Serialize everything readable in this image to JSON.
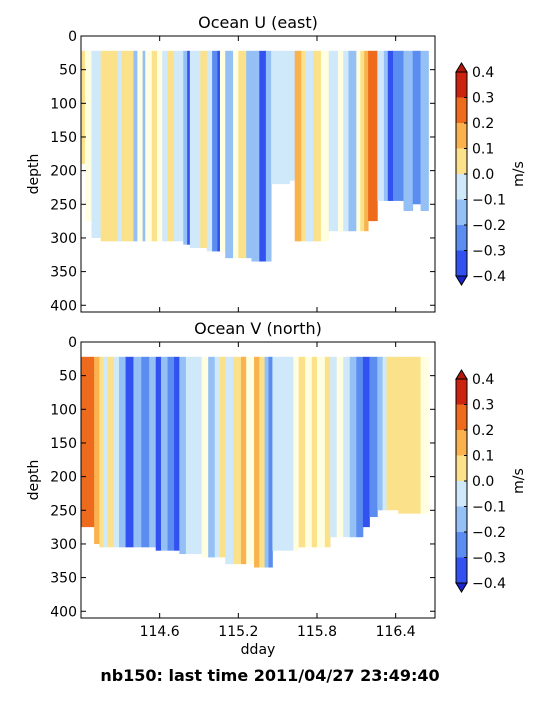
{
  "figure": {
    "suptitle": "nb150: last time 2011/04/27 23:49:40"
  },
  "chart_data": [
    {
      "type": "heatmap",
      "title": "Ocean U (east)",
      "xlabel": "",
      "ylabel": "depth",
      "x_ticks": [
        "114.6",
        "115.2",
        "115.8",
        "116.4"
      ],
      "x_tick_values": [
        114.6,
        115.2,
        115.8,
        116.4
      ],
      "xlim": [
        114.0,
        116.7
      ],
      "y_ticks": [
        "0",
        "50",
        "100",
        "150",
        "200",
        "250",
        "300",
        "350",
        "400"
      ],
      "y_tick_values": [
        0,
        50,
        100,
        150,
        200,
        250,
        300,
        350,
        400
      ],
      "ylim": [
        410,
        0
      ],
      "colorbar": {
        "label": "m/s",
        "ticks": [
          "0.4",
          "0.3",
          "0.2",
          "0.1",
          "0.0",
          "−0.1",
          "−0.2",
          "−0.3",
          "−0.4"
        ],
        "levels": [
          -0.4,
          -0.3,
          -0.2,
          -0.1,
          0.0,
          0.1,
          0.2,
          0.3,
          0.4
        ],
        "level_colors": [
          "#3152f0",
          "#5b8df0",
          "#94c0f5",
          "#cfe8fa",
          "#fffee0",
          "#fbe28a",
          "#f9b24e",
          "#ee6a1c",
          "#cc2210"
        ],
        "extend": "both"
      },
      "profiles": [
        {
          "x0": 114.0,
          "x1": 114.03,
          "v": 0.15,
          "top": 22,
          "bottom": 190
        },
        {
          "x0": 114.03,
          "x1": 114.08,
          "v": 0.05,
          "top": 22,
          "bottom": 275
        },
        {
          "x0": 114.08,
          "x1": 114.15,
          "v": -0.05,
          "top": 22,
          "bottom": 300
        },
        {
          "x0": 114.15,
          "x1": 114.28,
          "v": 0.15,
          "top": 22,
          "bottom": 305
        },
        {
          "x0": 114.28,
          "x1": 114.31,
          "v": -0.05,
          "top": 22,
          "bottom": 305
        },
        {
          "x0": 114.31,
          "x1": 114.4,
          "v": 0.12,
          "top": 22,
          "bottom": 305
        },
        {
          "x0": 114.4,
          "x1": 114.43,
          "v": -0.12,
          "top": 22,
          "bottom": 305
        },
        {
          "x0": 114.43,
          "x1": 114.47,
          "v": 0.05,
          "top": 22,
          "bottom": 305
        },
        {
          "x0": 114.47,
          "x1": 114.49,
          "v": -0.12,
          "top": 22,
          "bottom": 305
        },
        {
          "x0": 114.49,
          "x1": 114.54,
          "v": 0.05,
          "top": 22,
          "bottom": 305
        },
        {
          "x0": 114.54,
          "x1": 114.58,
          "v": 0.15,
          "top": 22,
          "bottom": 305
        },
        {
          "x0": 114.58,
          "x1": 114.62,
          "v": 0.05,
          "top": 22,
          "bottom": 305
        },
        {
          "x0": 114.62,
          "x1": 114.66,
          "v": -0.05,
          "top": 22,
          "bottom": 305
        },
        {
          "x0": 114.66,
          "x1": 114.71,
          "v": 0.15,
          "top": 22,
          "bottom": 305
        },
        {
          "x0": 114.71,
          "x1": 114.78,
          "v": -0.05,
          "top": 22,
          "bottom": 305
        },
        {
          "x0": 114.78,
          "x1": 114.81,
          "v": -0.15,
          "top": 22,
          "bottom": 310
        },
        {
          "x0": 114.81,
          "x1": 114.83,
          "v": -0.35,
          "top": 22,
          "bottom": 310
        },
        {
          "x0": 114.83,
          "x1": 114.91,
          "v": -0.05,
          "top": 22,
          "bottom": 315
        },
        {
          "x0": 114.91,
          "x1": 114.96,
          "v": 0.12,
          "top": 22,
          "bottom": 315
        },
        {
          "x0": 114.96,
          "x1": 115.0,
          "v": -0.05,
          "top": 22,
          "bottom": 320
        },
        {
          "x0": 115.0,
          "x1": 115.04,
          "v": -0.25,
          "top": 22,
          "bottom": 320
        },
        {
          "x0": 115.04,
          "x1": 115.06,
          "v": -0.38,
          "top": 22,
          "bottom": 320
        },
        {
          "x0": 115.06,
          "x1": 115.1,
          "v": 0.05,
          "top": 22,
          "bottom": 320
        },
        {
          "x0": 115.1,
          "x1": 115.16,
          "v": -0.15,
          "top": 22,
          "bottom": 330
        },
        {
          "x0": 115.16,
          "x1": 115.2,
          "v": 0.05,
          "top": 22,
          "bottom": 330
        },
        {
          "x0": 115.2,
          "x1": 115.26,
          "v": 0.12,
          "top": 22,
          "bottom": 330
        },
        {
          "x0": 115.26,
          "x1": 115.3,
          "v": -0.12,
          "top": 22,
          "bottom": 330
        },
        {
          "x0": 115.3,
          "x1": 115.36,
          "v": -0.2,
          "top": 22,
          "bottom": 335
        },
        {
          "x0": 115.36,
          "x1": 115.41,
          "v": -0.32,
          "top": 22,
          "bottom": 335
        },
        {
          "x0": 115.41,
          "x1": 115.45,
          "v": -0.15,
          "top": 22,
          "bottom": 335
        },
        {
          "x0": 115.45,
          "x1": 115.48,
          "v": -0.05,
          "top": 22,
          "bottom": 220
        },
        {
          "x0": 115.48,
          "x1": 115.59,
          "v": -0.05,
          "top": 22,
          "bottom": 220
        },
        {
          "x0": 115.59,
          "x1": 115.63,
          "v": -0.08,
          "top": 22,
          "bottom": 215
        },
        {
          "x0": 115.63,
          "x1": 115.68,
          "v": 0.25,
          "top": 22,
          "bottom": 305
        },
        {
          "x0": 115.68,
          "x1": 115.71,
          "v": 0.12,
          "top": 22,
          "bottom": 305
        },
        {
          "x0": 115.71,
          "x1": 115.77,
          "v": -0.05,
          "top": 22,
          "bottom": 305
        },
        {
          "x0": 115.77,
          "x1": 115.83,
          "v": 0.12,
          "top": 22,
          "bottom": 305
        },
        {
          "x0": 115.83,
          "x1": 115.89,
          "v": 0.05,
          "top": 22,
          "bottom": 305
        },
        {
          "x0": 115.89,
          "x1": 115.96,
          "v": -0.05,
          "top": 22,
          "bottom": 290
        },
        {
          "x0": 115.96,
          "x1": 116.0,
          "v": 0.05,
          "top": 22,
          "bottom": 290
        },
        {
          "x0": 116.0,
          "x1": 116.04,
          "v": -0.05,
          "top": 22,
          "bottom": 290
        },
        {
          "x0": 116.04,
          "x1": 116.1,
          "v": -0.12,
          "top": 22,
          "bottom": 290
        },
        {
          "x0": 116.1,
          "x1": 116.13,
          "v": 0.05,
          "top": 22,
          "bottom": 290
        },
        {
          "x0": 116.13,
          "x1": 116.16,
          "v": 0.15,
          "top": 22,
          "bottom": 290
        },
        {
          "x0": 116.16,
          "x1": 116.19,
          "v": 0.25,
          "top": 22,
          "bottom": 290
        },
        {
          "x0": 116.19,
          "x1": 116.26,
          "v": 0.38,
          "top": 22,
          "bottom": 275
        },
        {
          "x0": 116.26,
          "x1": 116.31,
          "v": -0.05,
          "top": 22,
          "bottom": 245
        },
        {
          "x0": 116.31,
          "x1": 116.34,
          "v": -0.18,
          "top": 22,
          "bottom": 245
        },
        {
          "x0": 116.34,
          "x1": 116.38,
          "v": -0.35,
          "top": 22,
          "bottom": 245
        },
        {
          "x0": 116.38,
          "x1": 116.46,
          "v": -0.22,
          "top": 22,
          "bottom": 245
        },
        {
          "x0": 116.46,
          "x1": 116.53,
          "v": -0.12,
          "top": 22,
          "bottom": 260
        },
        {
          "x0": 116.53,
          "x1": 116.59,
          "v": -0.22,
          "top": 22,
          "bottom": 250
        },
        {
          "x0": 116.59,
          "x1": 116.65,
          "v": -0.12,
          "top": 22,
          "bottom": 260
        }
      ]
    },
    {
      "type": "heatmap",
      "title": "Ocean V (north)",
      "xlabel": "dday",
      "ylabel": "depth",
      "x_ticks": [
        "114.6",
        "115.2",
        "115.8",
        "116.4"
      ],
      "x_tick_values": [
        114.6,
        115.2,
        115.8,
        116.4
      ],
      "xlim": [
        114.0,
        116.7
      ],
      "y_ticks": [
        "0",
        "50",
        "100",
        "150",
        "200",
        "250",
        "300",
        "350",
        "400"
      ],
      "y_tick_values": [
        0,
        50,
        100,
        150,
        200,
        250,
        300,
        350,
        400
      ],
      "ylim": [
        410,
        0
      ],
      "colorbar": {
        "label": "m/s",
        "ticks": [
          "0.4",
          "0.3",
          "0.2",
          "0.1",
          "0.0",
          "−0.1",
          "−0.2",
          "−0.3",
          "−0.4"
        ],
        "levels": [
          -0.4,
          -0.3,
          -0.2,
          -0.1,
          0.0,
          0.1,
          0.2,
          0.3,
          0.4
        ],
        "level_colors": [
          "#3152f0",
          "#5b8df0",
          "#94c0f5",
          "#cfe8fa",
          "#fffee0",
          "#fbe28a",
          "#f9b24e",
          "#ee6a1c",
          "#cc2210"
        ],
        "extend": "both"
      },
      "profiles": [
        {
          "x0": 114.0,
          "x1": 114.1,
          "v": 0.38,
          "top": 22,
          "bottom": 275
        },
        {
          "x0": 114.1,
          "x1": 114.14,
          "v": 0.25,
          "top": 22,
          "bottom": 300
        },
        {
          "x0": 114.14,
          "x1": 114.17,
          "v": 0.15,
          "top": 22,
          "bottom": 305
        },
        {
          "x0": 114.17,
          "x1": 114.2,
          "v": -0.05,
          "top": 22,
          "bottom": 305
        },
        {
          "x0": 114.2,
          "x1": 114.25,
          "v": 0.15,
          "top": 22,
          "bottom": 305
        },
        {
          "x0": 114.25,
          "x1": 114.29,
          "v": -0.05,
          "top": 22,
          "bottom": 305
        },
        {
          "x0": 114.29,
          "x1": 114.34,
          "v": -0.15,
          "top": 22,
          "bottom": 305
        },
        {
          "x0": 114.34,
          "x1": 114.4,
          "v": -0.32,
          "top": 22,
          "bottom": 305
        },
        {
          "x0": 114.4,
          "x1": 114.46,
          "v": -0.18,
          "top": 22,
          "bottom": 305
        },
        {
          "x0": 114.46,
          "x1": 114.52,
          "v": -0.28,
          "top": 22,
          "bottom": 305
        },
        {
          "x0": 114.52,
          "x1": 114.57,
          "v": -0.18,
          "top": 22,
          "bottom": 305
        },
        {
          "x0": 114.57,
          "x1": 114.61,
          "v": -0.32,
          "top": 22,
          "bottom": 310
        },
        {
          "x0": 114.61,
          "x1": 114.66,
          "v": -0.15,
          "top": 22,
          "bottom": 310
        },
        {
          "x0": 114.66,
          "x1": 114.71,
          "v": -0.22,
          "top": 22,
          "bottom": 310
        },
        {
          "x0": 114.71,
          "x1": 114.75,
          "v": -0.32,
          "top": 22,
          "bottom": 310
        },
        {
          "x0": 114.75,
          "x1": 114.8,
          "v": -0.15,
          "top": 22,
          "bottom": 315
        },
        {
          "x0": 114.8,
          "x1": 114.84,
          "v": -0.05,
          "top": 22,
          "bottom": 315
        },
        {
          "x0": 114.84,
          "x1": 114.92,
          "v": -0.05,
          "top": 22,
          "bottom": 315
        },
        {
          "x0": 114.92,
          "x1": 114.97,
          "v": 0.05,
          "top": 22,
          "bottom": 320
        },
        {
          "x0": 114.97,
          "x1": 115.02,
          "v": -0.12,
          "top": 22,
          "bottom": 320
        },
        {
          "x0": 115.02,
          "x1": 115.06,
          "v": -0.05,
          "top": 22,
          "bottom": 320
        },
        {
          "x0": 115.06,
          "x1": 115.1,
          "v": 0.12,
          "top": 22,
          "bottom": 320
        },
        {
          "x0": 115.1,
          "x1": 115.16,
          "v": -0.05,
          "top": 22,
          "bottom": 330
        },
        {
          "x0": 115.16,
          "x1": 115.22,
          "v": 0.12,
          "top": 22,
          "bottom": 330
        },
        {
          "x0": 115.22,
          "x1": 115.26,
          "v": 0.25,
          "top": 22,
          "bottom": 330
        },
        {
          "x0": 115.26,
          "x1": 115.32,
          "v": 0.05,
          "top": 22,
          "bottom": 330
        },
        {
          "x0": 115.32,
          "x1": 115.36,
          "v": 0.25,
          "top": 22,
          "bottom": 335
        },
        {
          "x0": 115.36,
          "x1": 115.4,
          "v": 0.12,
          "top": 22,
          "bottom": 335
        },
        {
          "x0": 115.4,
          "x1": 115.43,
          "v": -0.18,
          "top": 22,
          "bottom": 335
        },
        {
          "x0": 115.43,
          "x1": 115.46,
          "v": -0.28,
          "top": 22,
          "bottom": 335
        },
        {
          "x0": 115.46,
          "x1": 115.55,
          "v": -0.05,
          "top": 22,
          "bottom": 310
        },
        {
          "x0": 115.55,
          "x1": 115.62,
          "v": -0.05,
          "top": 22,
          "bottom": 310
        },
        {
          "x0": 115.62,
          "x1": 115.66,
          "v": 0.05,
          "top": 22,
          "bottom": 310
        },
        {
          "x0": 115.66,
          "x1": 115.71,
          "v": 0.12,
          "top": 22,
          "bottom": 305
        },
        {
          "x0": 115.71,
          "x1": 115.76,
          "v": 0.05,
          "top": 22,
          "bottom": 305
        },
        {
          "x0": 115.76,
          "x1": 115.8,
          "v": 0.15,
          "top": 22,
          "bottom": 305
        },
        {
          "x0": 115.8,
          "x1": 115.86,
          "v": 0.05,
          "top": 22,
          "bottom": 305
        },
        {
          "x0": 115.86,
          "x1": 115.9,
          "v": 0.12,
          "top": 22,
          "bottom": 305
        },
        {
          "x0": 115.9,
          "x1": 115.95,
          "v": -0.05,
          "top": 22,
          "bottom": 290
        },
        {
          "x0": 115.95,
          "x1": 116.0,
          "v": 0.05,
          "top": 22,
          "bottom": 290
        },
        {
          "x0": 116.0,
          "x1": 116.05,
          "v": -0.08,
          "top": 22,
          "bottom": 290
        },
        {
          "x0": 116.05,
          "x1": 116.1,
          "v": -0.15,
          "top": 22,
          "bottom": 290
        },
        {
          "x0": 116.1,
          "x1": 116.15,
          "v": -0.25,
          "top": 22,
          "bottom": 290
        },
        {
          "x0": 116.15,
          "x1": 116.2,
          "v": -0.32,
          "top": 22,
          "bottom": 275
        },
        {
          "x0": 116.2,
          "x1": 116.26,
          "v": -0.22,
          "top": 22,
          "bottom": 260
        },
        {
          "x0": 116.26,
          "x1": 116.3,
          "v": -0.12,
          "top": 22,
          "bottom": 250
        },
        {
          "x0": 116.3,
          "x1": 116.33,
          "v": -0.05,
          "top": 22,
          "bottom": 250
        },
        {
          "x0": 116.33,
          "x1": 116.42,
          "v": 0.15,
          "top": 22,
          "bottom": 250
        },
        {
          "x0": 116.42,
          "x1": 116.5,
          "v": 0.15,
          "top": 22,
          "bottom": 255
        },
        {
          "x0": 116.5,
          "x1": 116.59,
          "v": 0.12,
          "top": 22,
          "bottom": 255
        },
        {
          "x0": 116.59,
          "x1": 116.65,
          "v": 0.05,
          "top": 22,
          "bottom": 255
        }
      ]
    }
  ]
}
